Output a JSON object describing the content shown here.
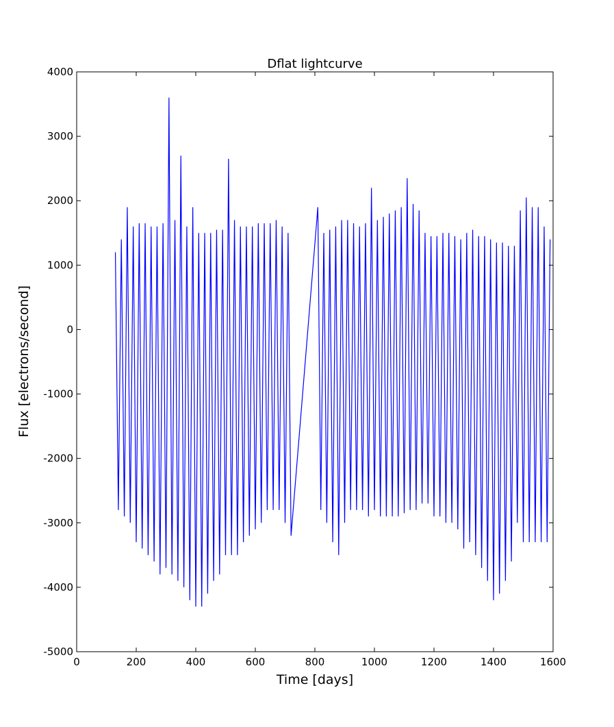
{
  "chart_data": {
    "type": "line",
    "title": "Dflat lightcurve",
    "x_label": "Time [days]",
    "y_label": "Flux [electrons/second]",
    "xlim": [
      0,
      1600
    ],
    "xticks": [
      0,
      200,
      400,
      600,
      800,
      1000,
      1200,
      1400,
      1600
    ],
    "ylim": [
      -5000,
      4000
    ],
    "yticks": [
      -5000,
      -4000,
      -3000,
      -2000,
      -1000,
      0,
      1000,
      2000,
      3000,
      4000
    ],
    "grid": false,
    "x": [
      130,
      140,
      150,
      160,
      170,
      180,
      190,
      200,
      210,
      220,
      230,
      240,
      250,
      260,
      270,
      280,
      290,
      300,
      310,
      320,
      330,
      340,
      350,
      360,
      370,
      380,
      390,
      400,
      410,
      420,
      430,
      440,
      450,
      460,
      470,
      480,
      490,
      500,
      510,
      520,
      530,
      540,
      550,
      560,
      570,
      580,
      590,
      600,
      610,
      620,
      630,
      640,
      650,
      660,
      670,
      680,
      690,
      700,
      710,
      720,
      810,
      820,
      830,
      840,
      850,
      860,
      870,
      880,
      890,
      900,
      910,
      920,
      930,
      940,
      950,
      960,
      970,
      980,
      990,
      1000,
      1010,
      1020,
      1030,
      1040,
      1050,
      1060,
      1070,
      1080,
      1090,
      1100,
      1110,
      1120,
      1130,
      1140,
      1150,
      1160,
      1170,
      1180,
      1190,
      1200,
      1210,
      1220,
      1230,
      1240,
      1250,
      1260,
      1270,
      1280,
      1290,
      1300,
      1310,
      1320,
      1330,
      1340,
      1350,
      1360,
      1370,
      1380,
      1390,
      1400,
      1410,
      1420,
      1430,
      1440,
      1450,
      1460,
      1470,
      1480,
      1490,
      1500,
      1510,
      1520,
      1530,
      1540,
      1550,
      1560,
      1570,
      1580,
      1590
    ],
    "series": [
      {
        "color": "#0000ff",
        "values": [
          1200,
          -2800,
          1400,
          -2900,
          1900,
          -3000,
          1600,
          -3300,
          1650,
          -3400,
          1650,
          -3500,
          1600,
          -3600,
          1600,
          -3800,
          1650,
          -3700,
          3600,
          -3800,
          1700,
          -3900,
          2700,
          -4000,
          1600,
          -4200,
          1900,
          -4300,
          1500,
          -4300,
          1500,
          -4100,
          1500,
          -3900,
          1550,
          -3800,
          1550,
          -3500,
          2650,
          -3500,
          1700,
          -3500,
          1600,
          -3300,
          1600,
          -3200,
          1600,
          -3100,
          1650,
          -3000,
          1650,
          -2800,
          1650,
          -2800,
          1700,
          -2800,
          1600,
          -3000,
          1500,
          -3200,
          1900,
          -2800,
          1500,
          -3000,
          1550,
          -3300,
          1600,
          -3500,
          1700,
          -3000,
          1700,
          -2800,
          1650,
          -2800,
          1600,
          -2800,
          1650,
          -2900,
          2200,
          -2800,
          1700,
          -2900,
          1750,
          -2900,
          1800,
          -2900,
          1850,
          -2900,
          1900,
          -2850,
          2350,
          -2800,
          1950,
          -2800,
          1850,
          -2700,
          1500,
          -2700,
          1450,
          -2900,
          1450,
          -2900,
          1500,
          -3000,
          1500,
          -3000,
          1450,
          -3100,
          1400,
          -3400,
          1500,
          -3300,
          1550,
          -3500,
          1450,
          -3700,
          1450,
          -3900,
          1400,
          -4200,
          1350,
          -4100,
          1350,
          -3900,
          1300,
          -3600,
          1300,
          -3000,
          1850,
          -3300,
          2050,
          -3300,
          1900,
          -3300,
          1900,
          -3300,
          1600,
          -3300,
          1400
        ]
      }
    ]
  }
}
